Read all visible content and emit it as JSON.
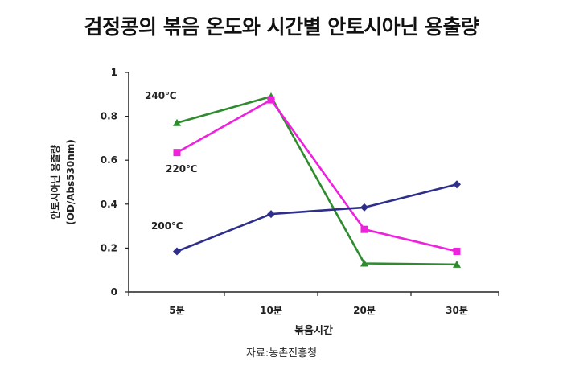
{
  "chart_data": {
    "type": "line",
    "title": "검정콩의 볶음 온도와 시간별 안토시아닌 용출량",
    "xlabel": "볶음시간",
    "ylabel": [
      "안토시아닌 용출량",
      "(OD/Abs530nm)"
    ],
    "categories": [
      "5분",
      "10분",
      "20분",
      "30분"
    ],
    "ylim": [
      0,
      1
    ],
    "yticks": [
      0,
      0.2,
      0.4,
      0.6,
      0.8,
      1
    ],
    "ytick_labels": [
      "0",
      "0.2",
      "0.4",
      "0.6",
      "0.8",
      "1"
    ],
    "grid": false,
    "series": [
      {
        "name": "240℃",
        "values": [
          0.77,
          0.89,
          0.13,
          0.125
        ],
        "color": "#2e8b2e",
        "marker": "triangle"
      },
      {
        "name": "220℃",
        "values": [
          0.635,
          0.875,
          0.285,
          0.185
        ],
        "color": "#ee22dd",
        "marker": "square"
      },
      {
        "name": "200℃",
        "values": [
          0.185,
          0.355,
          0.385,
          0.49
        ],
        "color": "#2e2e8b",
        "marker": "diamond"
      }
    ]
  },
  "source": "자료:농촌진흥청"
}
